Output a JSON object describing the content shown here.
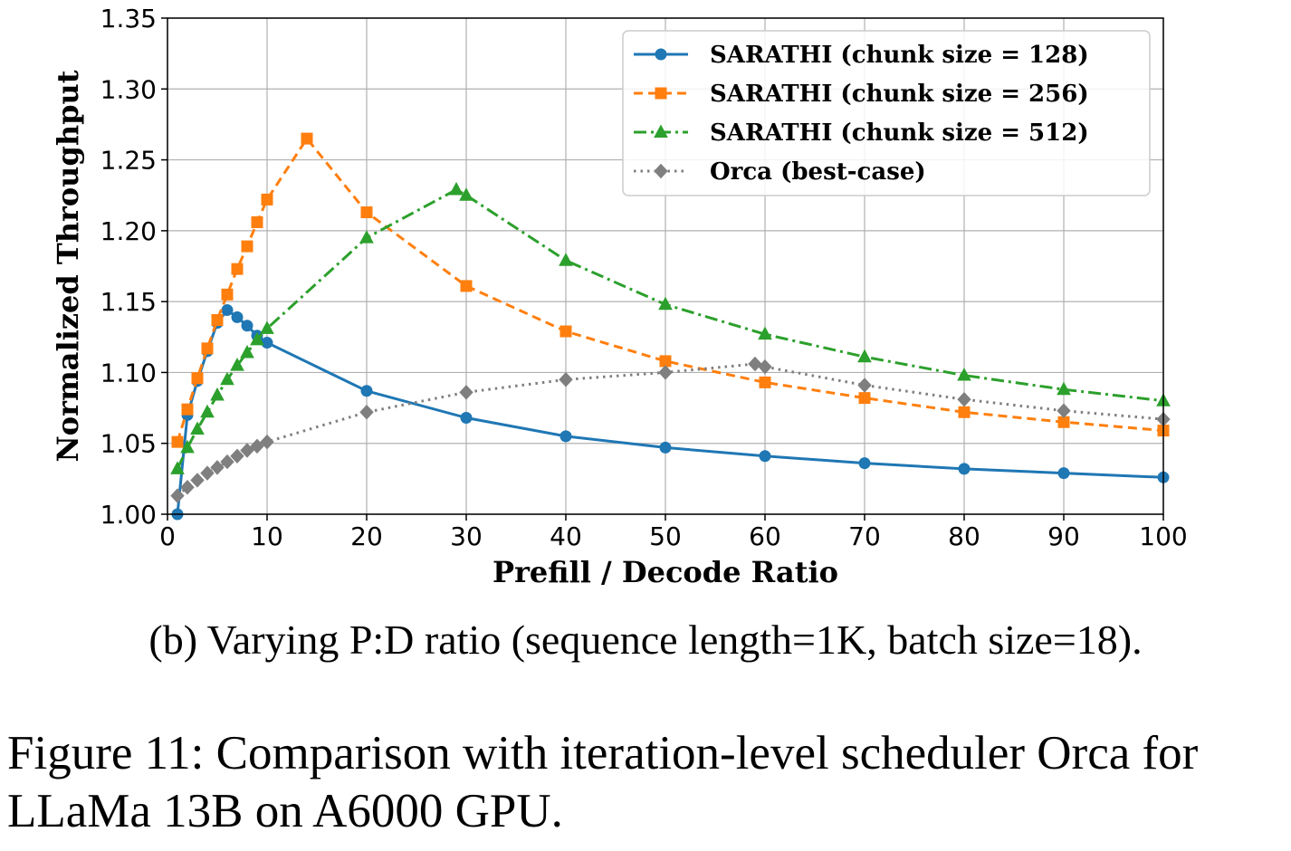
{
  "chart_data": {
    "type": "line",
    "xlabel": "Prefill / Decode Ratio",
    "ylabel": "Normalized Throughput",
    "xlim": [
      0,
      100
    ],
    "ylim": [
      1.0,
      1.35
    ],
    "xticks": [
      "0",
      "10",
      "20",
      "30",
      "40",
      "50",
      "60",
      "70",
      "80",
      "90",
      "100"
    ],
    "yticks": [
      "1.00",
      "1.05",
      "1.10",
      "1.15",
      "1.20",
      "1.25",
      "1.30",
      "1.35"
    ],
    "grid": true,
    "legend_position": "top-right",
    "series": [
      {
        "name": "SARATHI (chunk size = 128)",
        "color": "#1f77b4",
        "marker": "circle",
        "linestyle": "solid",
        "x": [
          1,
          2,
          3,
          4,
          5,
          6,
          7,
          8,
          9,
          10,
          20,
          30,
          40,
          50,
          60,
          70,
          80,
          90,
          100
        ],
        "y": [
          1.0,
          1.07,
          1.094,
          1.115,
          1.135,
          1.144,
          1.139,
          1.133,
          1.126,
          1.121,
          1.087,
          1.068,
          1.055,
          1.047,
          1.041,
          1.036,
          1.032,
          1.029,
          1.026
        ]
      },
      {
        "name": "SARATHI (chunk size = 256)",
        "color": "#ff7f0e",
        "marker": "square",
        "linestyle": "dashed",
        "x": [
          1,
          2,
          3,
          4,
          5,
          6,
          7,
          8,
          9,
          10,
          14,
          20,
          30,
          40,
          50,
          60,
          70,
          80,
          90,
          100
        ],
        "y": [
          1.051,
          1.074,
          1.096,
          1.117,
          1.137,
          1.155,
          1.173,
          1.189,
          1.206,
          1.222,
          1.265,
          1.213,
          1.161,
          1.129,
          1.108,
          1.093,
          1.082,
          1.072,
          1.065,
          1.059
        ]
      },
      {
        "name": "SARATHI (chunk size = 512)",
        "color": "#2ca02c",
        "marker": "triangle",
        "linestyle": "dashdot",
        "x": [
          1,
          2,
          3,
          4,
          5,
          6,
          7,
          8,
          9,
          10,
          20,
          29,
          30,
          40,
          50,
          60,
          70,
          80,
          90,
          100
        ],
        "y": [
          1.032,
          1.047,
          1.06,
          1.072,
          1.084,
          1.095,
          1.105,
          1.114,
          1.123,
          1.131,
          1.195,
          1.229,
          1.225,
          1.179,
          1.148,
          1.127,
          1.111,
          1.098,
          1.088,
          1.08
        ]
      },
      {
        "name": "Orca (best-case)",
        "color": "#7f7f7f",
        "marker": "diamond",
        "linestyle": "dotted",
        "x": [
          1,
          2,
          3,
          4,
          5,
          6,
          7,
          8,
          9,
          10,
          20,
          30,
          40,
          50,
          59,
          60,
          70,
          80,
          90,
          100
        ],
        "y": [
          1.013,
          1.019,
          1.024,
          1.029,
          1.033,
          1.037,
          1.041,
          1.045,
          1.048,
          1.051,
          1.072,
          1.086,
          1.095,
          1.1,
          1.106,
          1.104,
          1.091,
          1.081,
          1.073,
          1.067
        ]
      }
    ]
  },
  "subcaption": "(b) Varying P:D ratio (sequence length=1K, batch size=18).",
  "caption": "Figure 11: Comparison with iteration-level scheduler Orca for LLaMa 13B on A6000 GPU."
}
